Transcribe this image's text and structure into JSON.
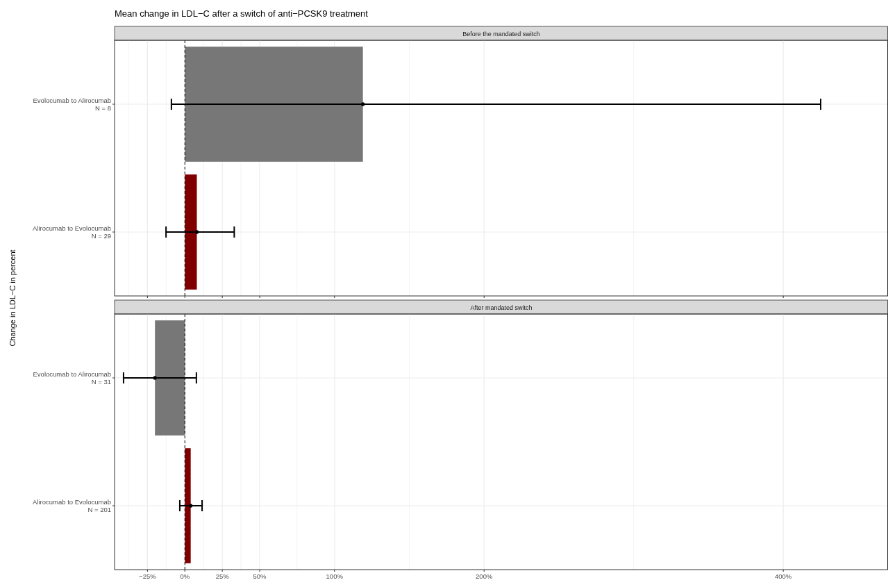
{
  "chart_data": [
    {
      "type": "bar",
      "title": "Mean change in LDL−C after a switch of anti−PCSK9 treatment",
      "subtitle": "Before the mandated switch",
      "ylabel": "Change in LDL−C in percent",
      "orientation": "horizontal",
      "categories": [
        "Evolocumab to Alirocumab\nN = 8",
        "Alirocumab to Evolocumab\nN = 29"
      ],
      "values": [
        119,
        8
      ],
      "colors": [
        "#777777",
        "#800000"
      ],
      "errors": [
        [
          -9,
          425
        ],
        [
          -12.6,
          33
        ]
      ],
      "marker": "circle",
      "xlim": [
        -47,
        470
      ],
      "xticks": [
        -25,
        0,
        25,
        50,
        100,
        200,
        400
      ],
      "tick_labels": "y",
      "grid": true,
      "ref_lines": [
        {
          "axis": "x",
          "value": 0,
          "line_style": "dashed"
        }
      ]
    },
    {
      "type": "bar",
      "subtitle": "After mandated switch",
      "orientation": "horizontal",
      "categories": [
        "Evolocumab to Alirocumab\nN = 31",
        "Alirocumab to Evolocumab\nN = 201"
      ],
      "values": [
        -20,
        3.9
      ],
      "colors": [
        "#777777",
        "#800000"
      ],
      "errors": [
        [
          -41,
          7.7
        ],
        [
          -3.4,
          11.5
        ]
      ],
      "marker": "circle",
      "xlim": [
        -47,
        470
      ],
      "xticks": [
        {
          "value": -25,
          "label": "−25%"
        },
        {
          "value": 0,
          "label": "0%"
        },
        {
          "value": 25,
          "label": "25%"
        },
        {
          "value": 50,
          "label": "50%"
        },
        {
          "value": 100,
          "label": "100%"
        },
        {
          "value": 200,
          "label": "200%"
        },
        {
          "value": 400,
          "label": "400%"
        }
      ],
      "grid": true,
      "ref_lines": [
        {
          "axis": "x",
          "value": 0,
          "line_style": "dashed"
        }
      ]
    }
  ]
}
